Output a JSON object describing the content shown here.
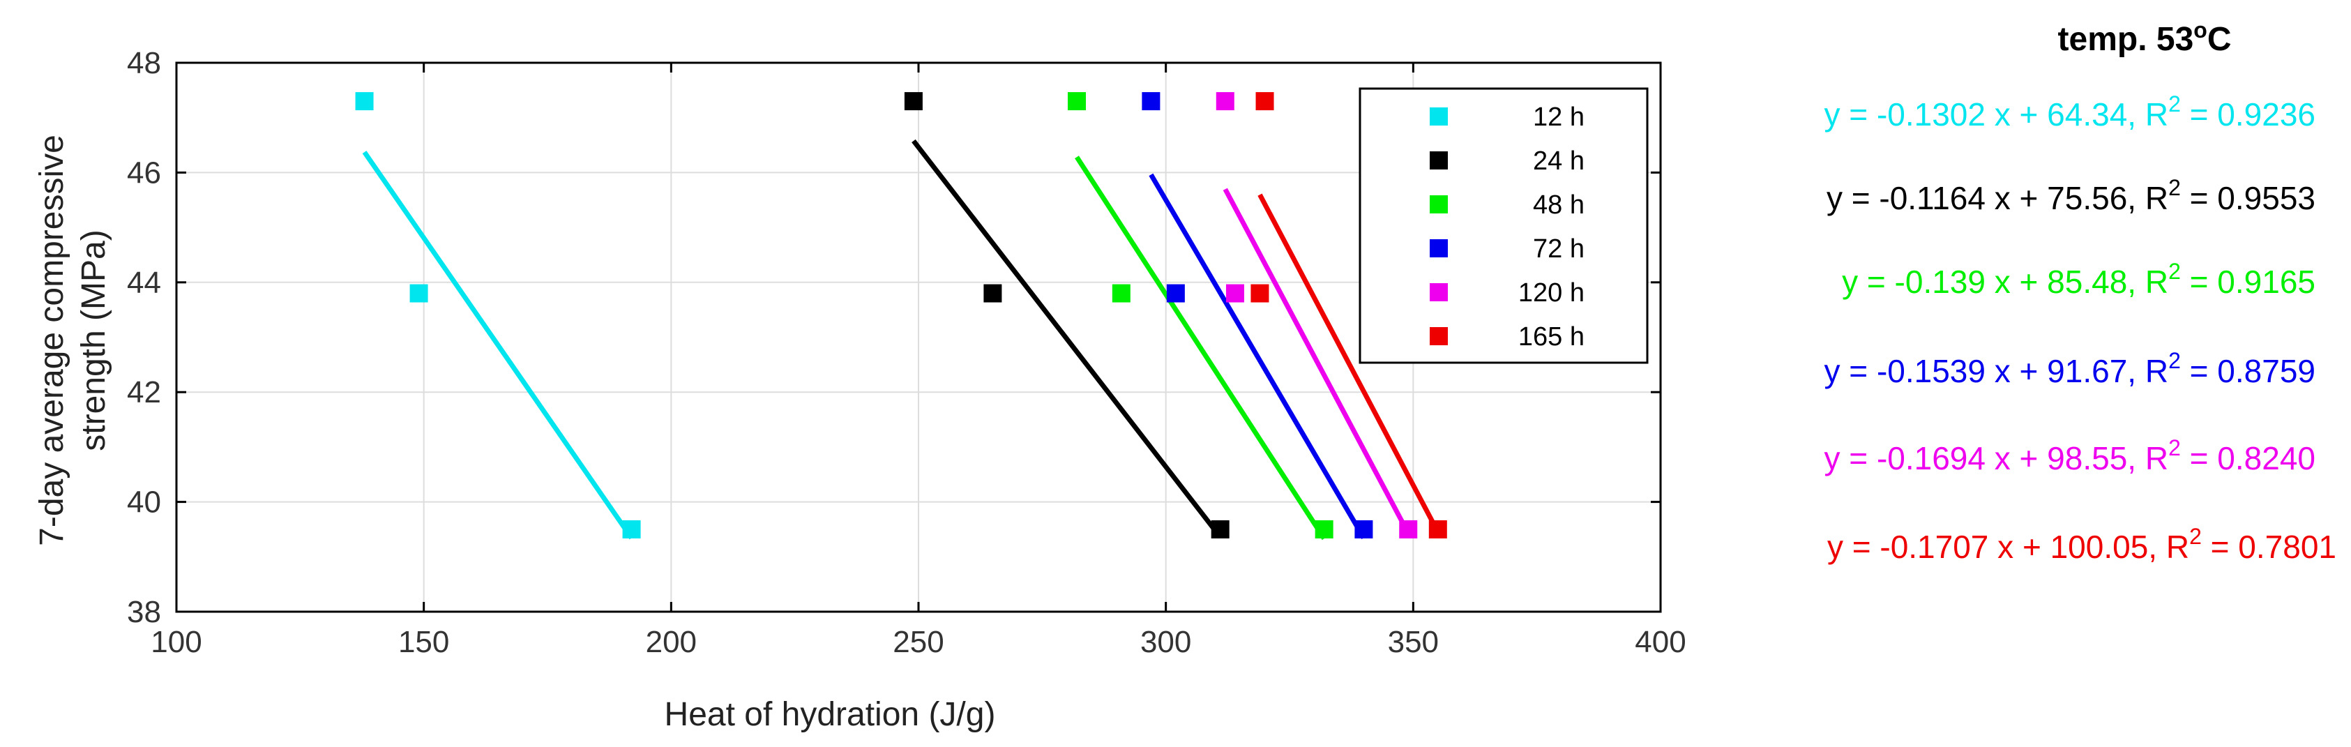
{
  "chart_data": {
    "type": "scatter",
    "title": "temp. 53",
    "title_superscript": "o",
    "title_unit": "C",
    "xlabel": "Heat of hydration (J/g)",
    "ylabel_line1": "7-day average compressive",
    "ylabel_line2": "strength (MPa)",
    "xlim": [
      100,
      400
    ],
    "ylim": [
      38,
      48
    ],
    "xticks": [
      100,
      150,
      200,
      250,
      300,
      350,
      400
    ],
    "yticks": [
      38,
      40,
      42,
      44,
      46,
      48
    ],
    "grid": true,
    "legend_position": "top-right",
    "series": [
      {
        "name": "12 h",
        "color": "#00e5ee",
        "x": [
          138,
          149,
          192
        ],
        "y": [
          47.3,
          43.8,
          39.5
        ],
        "fit": {
          "slope": -0.1302,
          "intercept": 64.34,
          "r2": 0.9236
        },
        "equation": "y = -0.1302 x + 64.34, R",
        "r2_text": " = 0.9236"
      },
      {
        "name": "24 h",
        "color": "#000000",
        "x": [
          249,
          265,
          311
        ],
        "y": [
          47.3,
          43.8,
          39.5
        ],
        "fit": {
          "slope": -0.1164,
          "intercept": 75.56,
          "r2": 0.9553
        },
        "equation": "y = -0.1164 x + 75.56, R",
        "r2_text": " = 0.9553"
      },
      {
        "name": "48 h",
        "color": "#00ee00",
        "x": [
          282,
          291,
          332
        ],
        "y": [
          47.3,
          43.8,
          39.5
        ],
        "fit": {
          "slope": -0.139,
          "intercept": 85.48,
          "r2": 0.9165
        },
        "equation": "y = -0.139 x + 85.48, R",
        "r2_text": " = 0.9165"
      },
      {
        "name": "72 h",
        "color": "#0000ee",
        "x": [
          297,
          302,
          340
        ],
        "y": [
          47.3,
          43.8,
          39.5
        ],
        "fit": {
          "slope": -0.1539,
          "intercept": 91.67,
          "r2": 0.8759
        },
        "equation": "y = -0.1539 x + 91.67, R",
        "r2_text": " = 0.8759"
      },
      {
        "name": "120 h",
        "color": "#ee00ee",
        "x": [
          312,
          314,
          349
        ],
        "y": [
          47.3,
          43.8,
          39.5
        ],
        "fit": {
          "slope": -0.1694,
          "intercept": 98.55,
          "r2": 0.824
        },
        "equation": "y = -0.1694 x + 98.55, R",
        "r2_text": " = 0.8240"
      },
      {
        "name": "165 h",
        "color": "#ee0000",
        "x": [
          320,
          319,
          355
        ],
        "y": [
          47.3,
          43.8,
          39.5
        ],
        "fit": {
          "slope": -0.1707,
          "intercept": 100.05,
          "r2": 0.7801
        },
        "equation": "y = -0.1707 x + 100.05, R",
        "r2_text": " = 0.7801"
      }
    ],
    "r2_superscript": "2"
  }
}
